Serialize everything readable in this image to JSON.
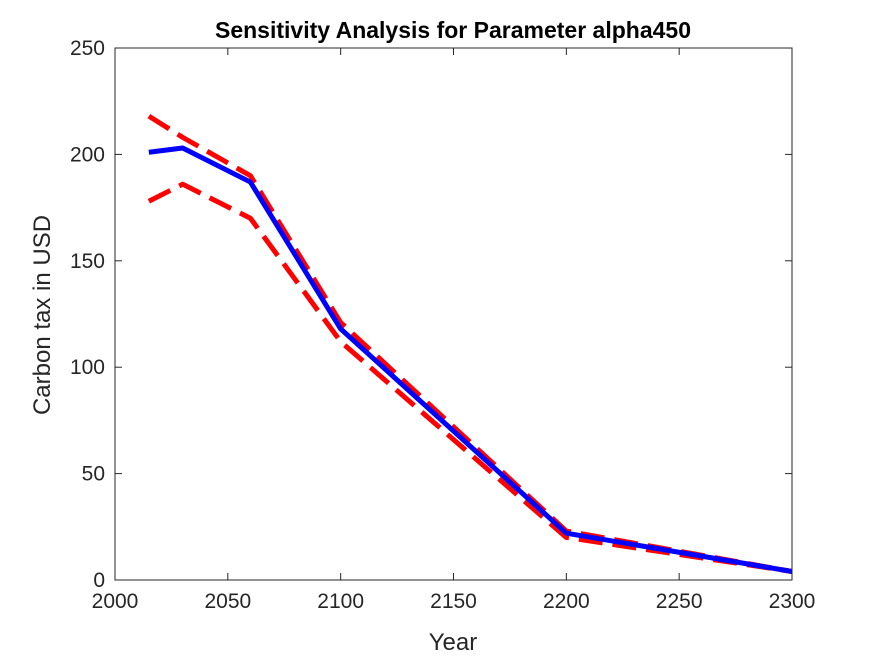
{
  "chart_data": {
    "type": "line",
    "title": "Sensitivity Analysis for Parameter alpha450",
    "xlabel": "Year",
    "ylabel": "Carbon tax in USD",
    "xlim": [
      2000,
      2300
    ],
    "ylim": [
      0,
      250
    ],
    "xticks": [
      "2000",
      "2050",
      "2100",
      "2150",
      "2200",
      "2250",
      "2300"
    ],
    "yticks": [
      "0",
      "50",
      "100",
      "150",
      "200",
      "250"
    ],
    "grid": false,
    "legend": "none",
    "series": [
      {
        "color": "#0000ff",
        "style": "solid",
        "x": [
          2015,
          2030,
          2060,
          2100,
          2200,
          2300
        ],
        "y": [
          201,
          203,
          187,
          118,
          22,
          4
        ]
      },
      {
        "color": "#ff0000",
        "style": "dashed",
        "x": [
          2015,
          2030,
          2060,
          2100,
          2200,
          2300
        ],
        "y": [
          218,
          208,
          190,
          121,
          23,
          4
        ]
      },
      {
        "color": "#ff0000",
        "style": "dashed",
        "x": [
          2015,
          2030,
          2060,
          2100,
          2200,
          2300
        ],
        "y": [
          178,
          186,
          170,
          112,
          20,
          4
        ]
      }
    ]
  }
}
